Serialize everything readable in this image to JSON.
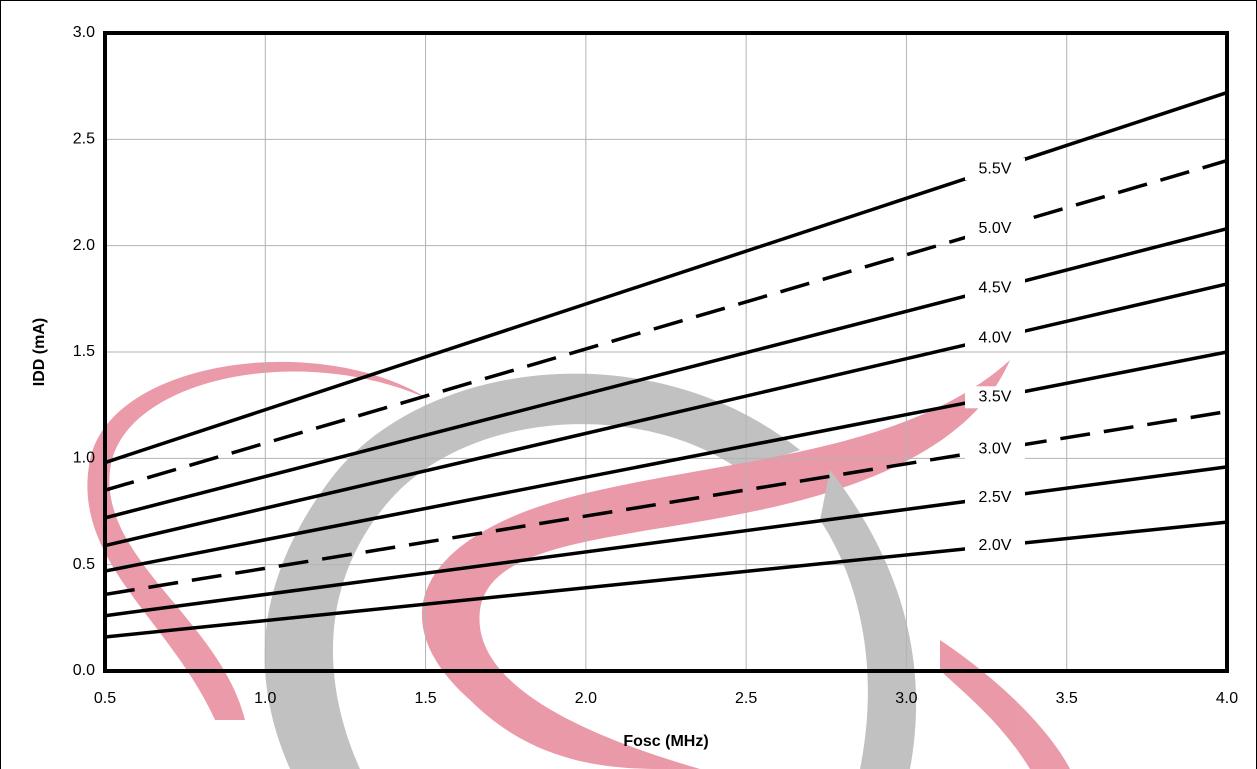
{
  "chart_data": {
    "type": "line",
    "x_label": "Fosc (MHz)",
    "y_label": "IDD (mA)",
    "x": [
      0.5,
      4.0
    ],
    "series": [
      {
        "name": "5.5V",
        "color": "#000000",
        "style": "solid",
        "values": [
          0.98,
          2.72
        ]
      },
      {
        "name": "5.0V",
        "color": "#000000",
        "style": "dashed",
        "values": [
          0.85,
          2.4
        ]
      },
      {
        "name": "4.5V",
        "color": "#000000",
        "style": "solid",
        "values": [
          0.72,
          2.08
        ]
      },
      {
        "name": "4.0V",
        "color": "#000000",
        "style": "solid",
        "values": [
          0.59,
          1.82
        ]
      },
      {
        "name": "3.5V",
        "color": "#000000",
        "style": "solid",
        "values": [
          0.47,
          1.5
        ]
      },
      {
        "name": "3.0V",
        "color": "#000000",
        "style": "dashed",
        "values": [
          0.36,
          1.22
        ]
      },
      {
        "name": "2.5V",
        "color": "#000000",
        "style": "solid",
        "values": [
          0.26,
          0.96
        ]
      },
      {
        "name": "2.0V",
        "color": "#000000",
        "style": "solid",
        "values": [
          0.16,
          0.7
        ]
      }
    ],
    "xlim": [
      0.5,
      4.0
    ],
    "xticks": [
      0.5,
      {
        "value": 1,
        "label": "1.0"
      },
      1.5,
      {
        "value": 2,
        "label": "2.0"
      },
      2.5,
      {
        "value": 3,
        "label": "3.0"
      },
      3.5,
      {
        "value": 4,
        "label": "4.0"
      }
    ],
    "ylim": [
      0,
      3
    ],
    "yticks": [
      {
        "value": 0,
        "label": "0.0"
      },
      0.5,
      {
        "value": 1,
        "label": "1.0"
      },
      1.5,
      {
        "value": 2,
        "label": "2.0"
      },
      2.5,
      {
        "value": 3,
        "label": "3.0"
      }
    ],
    "grid": true
  }
}
